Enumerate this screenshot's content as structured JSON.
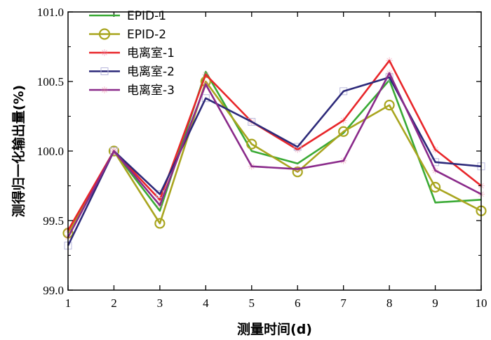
{
  "chart_data": {
    "type": "line",
    "xlabel": "测量时间(d)",
    "ylabel": "测得归一化输出量(%)",
    "x": [
      1,
      2,
      3,
      4,
      5,
      6,
      7,
      8,
      9,
      10
    ],
    "xlim": [
      1,
      10
    ],
    "ylim": [
      99.0,
      101.0
    ],
    "x_ticks": [
      "1",
      "2",
      "3",
      "4",
      "5",
      "6",
      "7",
      "8",
      "9",
      "10"
    ],
    "y_ticks": [
      "99.0",
      "99.5",
      "100.0",
      "100.5",
      "101.0"
    ],
    "y_tick_values": [
      99.0,
      99.5,
      100.0,
      100.5,
      101.0
    ],
    "grid": false,
    "legend_position": "top-left",
    "series": [
      {
        "name": "EPID-1",
        "color": "#3aaa35",
        "marker": "none",
        "values": [
          99.42,
          100.0,
          99.57,
          100.57,
          100.0,
          99.91,
          100.13,
          100.51,
          99.63,
          99.65
        ]
      },
      {
        "name": "EPID-2",
        "color": "#a9a51f",
        "marker": "circle",
        "values": [
          99.41,
          100.0,
          99.48,
          100.5,
          100.05,
          99.85,
          100.14,
          100.33,
          99.74,
          99.57
        ]
      },
      {
        "name": "电离室-1",
        "color": "#e8262a",
        "marker": "star",
        "values": [
          99.43,
          100.0,
          99.65,
          100.55,
          100.21,
          100.01,
          100.22,
          100.65,
          100.01,
          99.75
        ]
      },
      {
        "name": "电离室-2",
        "color": "#2d2a7a",
        "marker": "square",
        "values": [
          99.32,
          100.0,
          99.69,
          100.38,
          100.21,
          100.03,
          100.43,
          100.53,
          99.92,
          99.89
        ]
      },
      {
        "name": "电离室-3",
        "color": "#8a2a8a",
        "marker": "star",
        "values": [
          99.38,
          100.0,
          99.61,
          100.48,
          99.89,
          99.87,
          99.93,
          100.56,
          99.86,
          99.69
        ]
      }
    ]
  }
}
